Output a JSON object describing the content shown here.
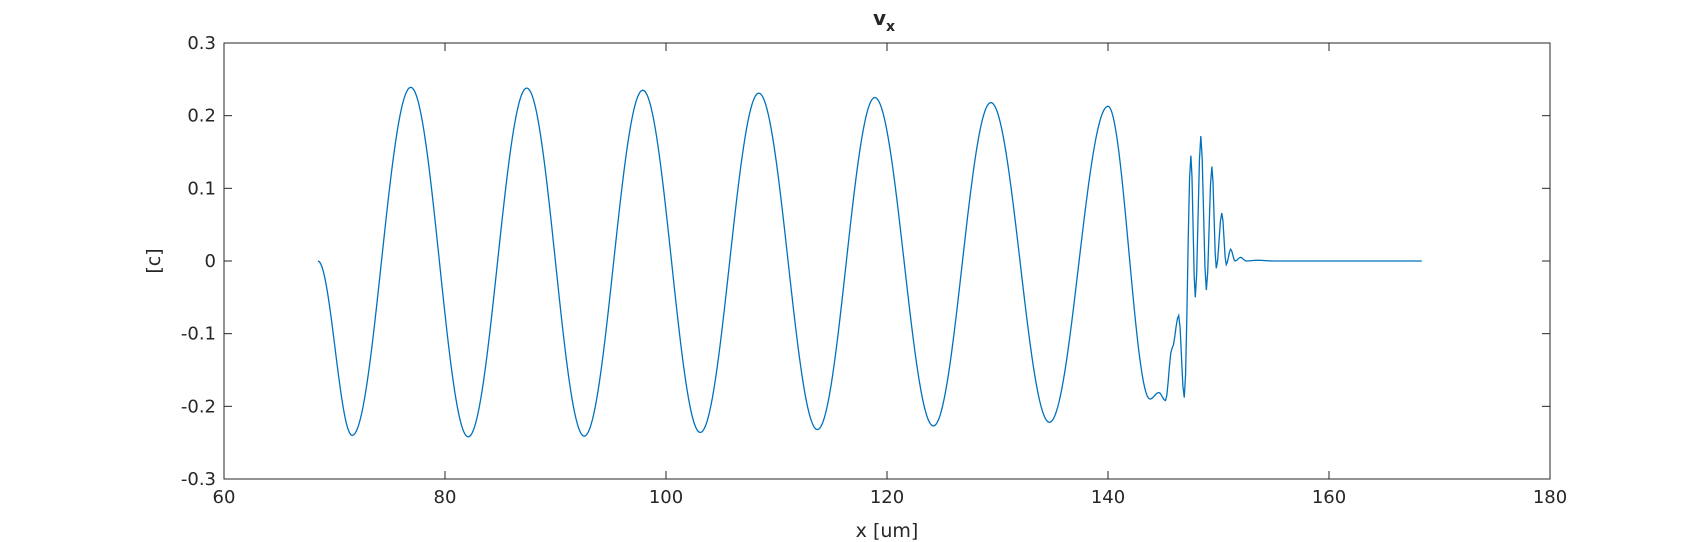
{
  "chart_data": {
    "type": "line",
    "title": "v",
    "title_subscript": "x",
    "xlabel": "x [um]",
    "ylabel": "[c]",
    "xlim": [
      60,
      180
    ],
    "ylim": [
      -0.3,
      0.3
    ],
    "xticks": [
      60,
      80,
      100,
      120,
      140,
      160,
      180
    ],
    "yticks": [
      -0.3,
      -0.2,
      -0.1,
      0,
      0.1,
      0.2,
      0.3
    ],
    "xtick_labels": [
      "60",
      "80",
      "100",
      "120",
      "140",
      "160",
      "180"
    ],
    "ytick_labels": [
      "-0.3",
      "-0.2",
      "-0.1",
      "0",
      "0.1",
      "0.2",
      "0.3"
    ],
    "grid": false,
    "box": true,
    "series_color": "#0072BD",
    "series": [
      {
        "x": [
          68.5,
          71.6,
          76.9,
          82.1,
          87.4,
          92.6,
          97.9,
          103.1,
          108.4,
          113.7,
          118.9,
          124.2,
          129.4,
          134.7,
          140.0,
          143.8,
          144.6,
          145.2,
          145.8,
          146.4,
          146.9,
          147.5,
          147.9,
          148.4,
          148.9,
          149.4,
          149.8,
          150.3,
          150.7,
          151.1,
          151.5,
          152.0,
          152.5,
          153.5,
          155.0,
          160.0,
          165.0,
          168.4
        ],
        "y": [
          0.0,
          -0.24,
          0.239,
          -0.242,
          0.238,
          -0.241,
          0.235,
          -0.236,
          0.231,
          -0.232,
          0.225,
          -0.227,
          0.218,
          -0.222,
          0.213,
          -0.19,
          -0.181,
          -0.192,
          -0.12,
          -0.075,
          -0.188,
          0.145,
          -0.05,
          0.172,
          -0.04,
          0.13,
          -0.01,
          0.066,
          -0.005,
          0.016,
          0.0,
          0.005,
          0.0,
          0.001,
          0.0,
          0.0,
          0.0,
          0.0
        ]
      }
    ]
  }
}
